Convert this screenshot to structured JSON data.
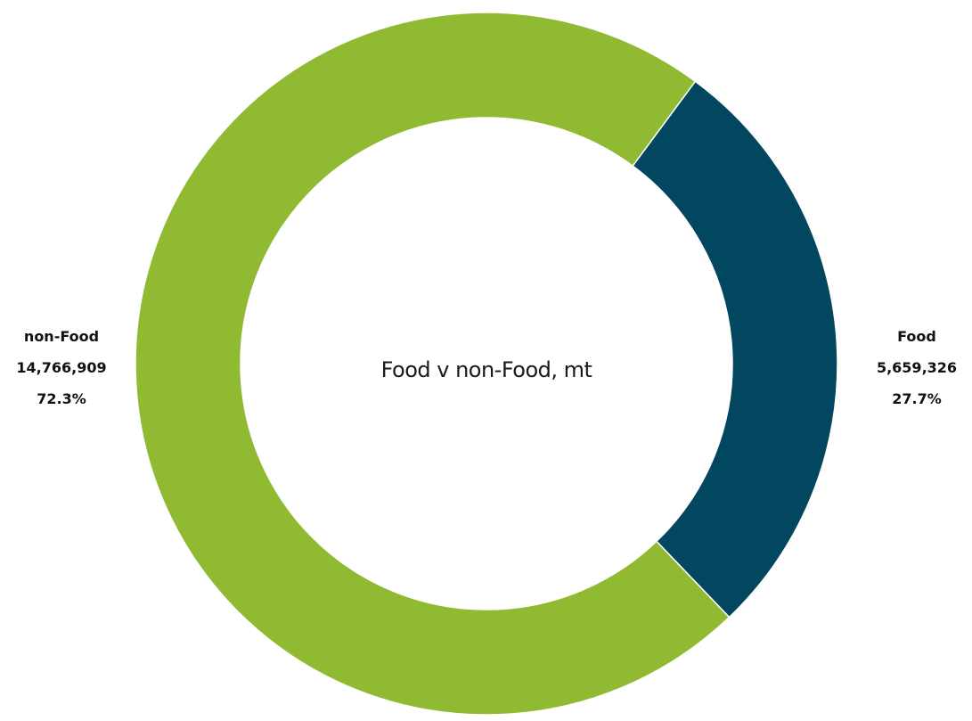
{
  "chart_data": {
    "type": "pie",
    "donut": true,
    "title": "Food v non-Food, mt",
    "start_angle_deg": 36.5,
    "series": [
      {
        "name": "Food",
        "value": 5659326,
        "value_label": "5,659,326",
        "percent_label": "27.7%",
        "color": "#034660",
        "label_side": "right"
      },
      {
        "name": "non-Food",
        "value": 14766909,
        "value_label": "14,766,909",
        "percent_label": "72.3%",
        "color": "#91BA33",
        "label_side": "left"
      }
    ]
  }
}
